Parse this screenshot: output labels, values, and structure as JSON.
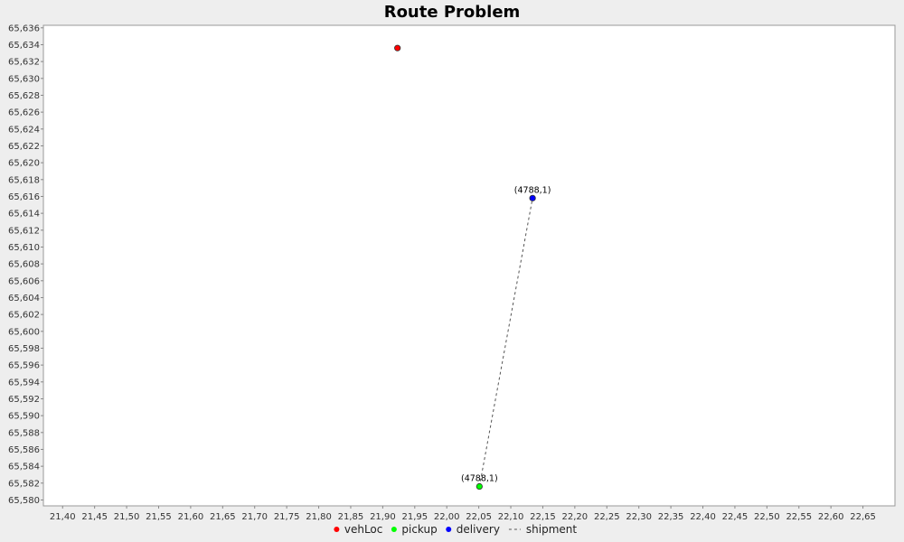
{
  "chart_data": {
    "type": "scatter",
    "title": "Route Problem",
    "xlim": [
      21.37,
      22.7
    ],
    "ylim": [
      65.5793,
      65.6363
    ],
    "x_ticks": [
      "21,40",
      "21,45",
      "21,50",
      "21,55",
      "21,60",
      "21,65",
      "21,70",
      "21,75",
      "21,80",
      "21,85",
      "21,90",
      "21,95",
      "22,00",
      "22,05",
      "22,10",
      "22,15",
      "22,20",
      "22,25",
      "22,30",
      "22,35",
      "22,40",
      "22,45",
      "22,50",
      "22,55",
      "22,60",
      "22,65"
    ],
    "x_tick_values": [
      21.4,
      21.45,
      21.5,
      21.55,
      21.6,
      21.65,
      21.7,
      21.75,
      21.8,
      21.85,
      21.9,
      21.95,
      22.0,
      22.05,
      22.1,
      22.15,
      22.2,
      22.25,
      22.3,
      22.35,
      22.4,
      22.45,
      22.5,
      22.55,
      22.6,
      22.65
    ],
    "y_ticks": [
      "65,580",
      "65,582",
      "65,584",
      "65,586",
      "65,588",
      "65,590",
      "65,592",
      "65,594",
      "65,596",
      "65,598",
      "65,600",
      "65,602",
      "65,604",
      "65,606",
      "65,608",
      "65,610",
      "65,612",
      "65,614",
      "65,616",
      "65,618",
      "65,620",
      "65,622",
      "65,624",
      "65,626",
      "65,628",
      "65,630",
      "65,632",
      "65,634",
      "65,636"
    ],
    "y_tick_values": [
      65.58,
      65.582,
      65.584,
      65.586,
      65.588,
      65.59,
      65.592,
      65.594,
      65.596,
      65.598,
      65.6,
      65.602,
      65.604,
      65.606,
      65.608,
      65.61,
      65.612,
      65.614,
      65.616,
      65.618,
      65.62,
      65.622,
      65.624,
      65.626,
      65.628,
      65.63,
      65.632,
      65.634,
      65.636
    ],
    "grid": false,
    "legend_position": "bottom",
    "series": [
      {
        "name": "vehLoc",
        "color": "#ff0000",
        "points": [
          {
            "x": 21.923,
            "y": 65.6336,
            "label": ""
          }
        ]
      },
      {
        "name": "pickup",
        "color": "#00ff00",
        "points": [
          {
            "x": 22.051,
            "y": 65.5816,
            "label": "(4788,1)"
          }
        ]
      },
      {
        "name": "delivery",
        "color": "#0000ff",
        "points": [
          {
            "x": 22.134,
            "y": 65.6158,
            "label": "(4788,1)"
          }
        ]
      }
    ],
    "shipments": [
      {
        "name": "shipment",
        "color": "#555555",
        "from": {
          "x": 22.051,
          "y": 65.5816
        },
        "to": {
          "x": 22.134,
          "y": 65.6158
        }
      }
    ]
  }
}
